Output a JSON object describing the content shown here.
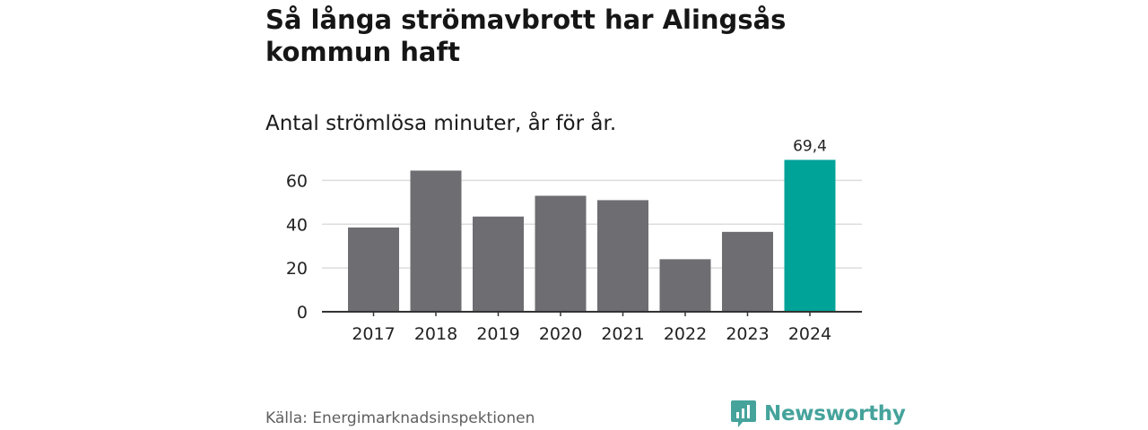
{
  "header": {
    "title": "Så långa strömavbrott har Alingsås kommun haft",
    "subtitle": "Antal strömlösa minuter, år för år."
  },
  "colors": {
    "bar": "#6e6d72",
    "highlight": "#00a398",
    "gridline": "#dddddd",
    "axis": "#333333",
    "brand": "#45a39b"
  },
  "chart_data": {
    "type": "bar",
    "title": "Så långa strömavbrott har Alingsås kommun haft",
    "subtitle": "Antal strömlösa minuter, år för år.",
    "xlabel": "",
    "ylabel": "",
    "categories": [
      "2017",
      "2018",
      "2019",
      "2020",
      "2021",
      "2022",
      "2023",
      "2024"
    ],
    "values": [
      38.5,
      64.5,
      43.5,
      53,
      51,
      24,
      36.5,
      69.4
    ],
    "highlight_index": 7,
    "data_labels": [
      {
        "index": 7,
        "text": "69,4"
      }
    ],
    "ylim": [
      0,
      70
    ],
    "yticks": [
      0,
      20,
      40,
      60
    ],
    "grid": true
  },
  "footer": {
    "source": "Källa: Energimarknadsinspektionen",
    "brand": "Newsworthy",
    "brand_icon": "newsworthy-logo-icon"
  }
}
